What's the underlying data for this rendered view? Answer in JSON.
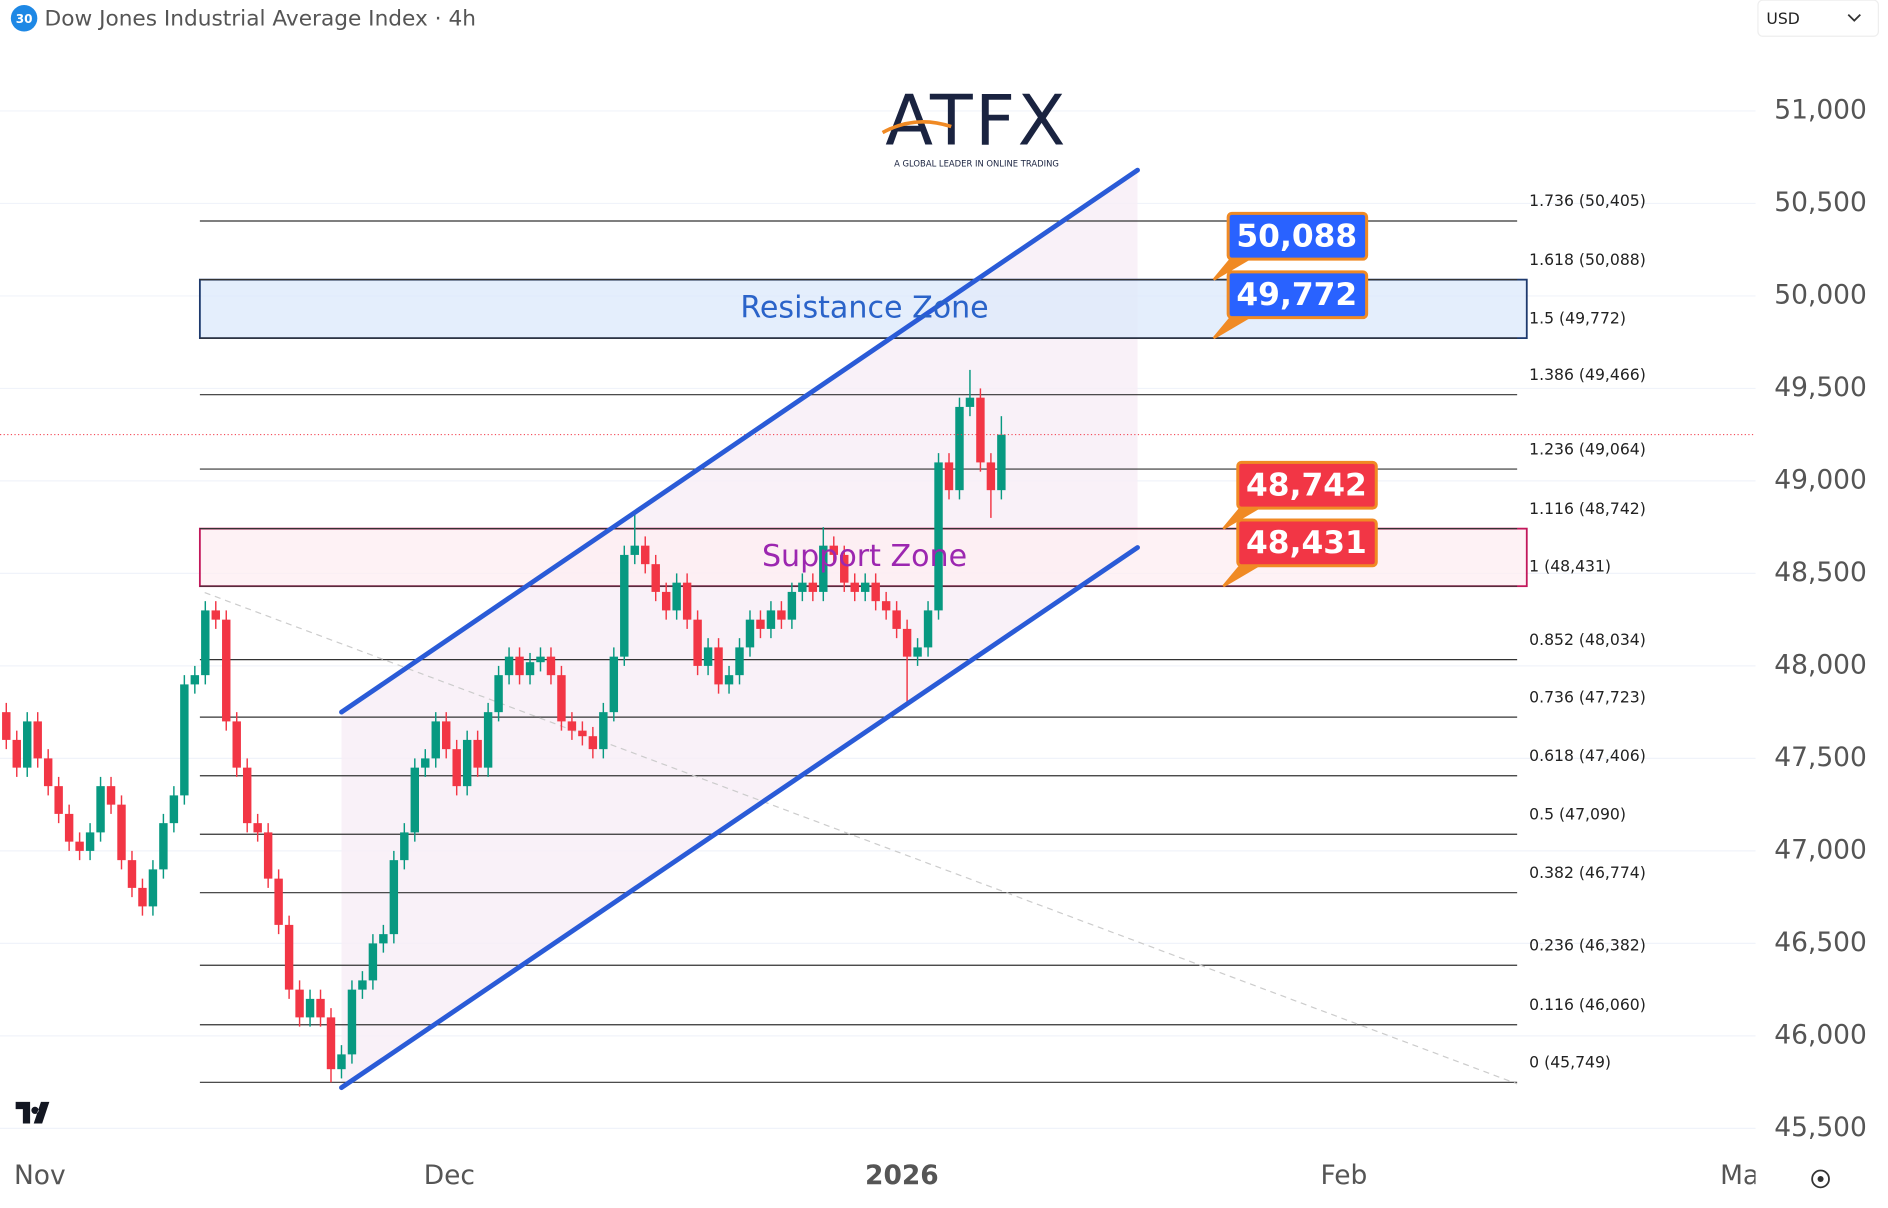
{
  "header": {
    "title": "Dow Jones Industrial Average Index · 4h",
    "badge": "30",
    "currency": "USD"
  },
  "logo": {
    "brand": "ATFX",
    "tagline": "A GLOBAL LEADER IN ONLINE TRADING"
  },
  "chart_data": {
    "type": "candlestick",
    "up_color": "#089981",
    "down_color": "#f23645",
    "open": [
      47750,
      47600,
      47450,
      47700,
      47500,
      47350,
      47200,
      47050,
      47000,
      47100,
      47350,
      47250,
      46950,
      46800,
      46700,
      46900,
      47150,
      47300,
      47900,
      47950,
      48300,
      48250,
      47700,
      47450,
      47150,
      47100,
      46850,
      46600,
      46250,
      46100,
      46200,
      46100,
      45820,
      45900,
      46250,
      46300,
      46500,
      46550,
      46950,
      47100,
      47450,
      47500,
      47700,
      47550,
      47350,
      47600,
      47450,
      47750,
      47950,
      48050,
      47950,
      48020,
      48050,
      47950,
      47700,
      47650,
      47620,
      47550,
      47750,
      48050,
      48600,
      48650,
      48550,
      48400,
      48300,
      48450,
      48250,
      48000,
      48100,
      47900,
      47950,
      48100,
      48250,
      48200,
      48300,
      48250,
      48400,
      48450,
      48400,
      48650,
      48600,
      48450,
      48400,
      48450,
      48350,
      48300,
      48200,
      48050,
      48100,
      48300,
      49100,
      48950,
      49400,
      49450,
      49100,
      48950
    ],
    "high": [
      47800,
      47650,
      47750,
      47750,
      47550,
      47400,
      47250,
      47100,
      47150,
      47400,
      47400,
      47300,
      47000,
      46850,
      46950,
      47200,
      47350,
      47950,
      48000,
      48350,
      48350,
      48300,
      47750,
      47500,
      47200,
      47150,
      46900,
      46650,
      46300,
      46250,
      46250,
      46150,
      45950,
      46300,
      46350,
      46550,
      46600,
      47000,
      47150,
      47500,
      47550,
      47750,
      47750,
      47600,
      47650,
      47650,
      47800,
      48000,
      48100,
      48100,
      48070,
      48100,
      48100,
      48000,
      47750,
      47700,
      47670,
      47800,
      48100,
      48650,
      48830,
      48700,
      48600,
      48450,
      48500,
      48500,
      48300,
      48150,
      48150,
      48000,
      48150,
      48300,
      48300,
      48350,
      48350,
      48450,
      48500,
      48500,
      48750,
      48700,
      48650,
      48500,
      48500,
      48500,
      48400,
      48350,
      48250,
      48150,
      48350,
      49150,
      49150,
      49450,
      49600,
      49500,
      49150,
      49350
    ],
    "low": [
      47550,
      47400,
      47400,
      47450,
      47300,
      47150,
      47000,
      46950,
      46950,
      47050,
      47200,
      46900,
      46750,
      46650,
      46650,
      46850,
      47100,
      47250,
      47850,
      47900,
      48200,
      47650,
      47400,
      47100,
      47050,
      46800,
      46550,
      46200,
      46050,
      46050,
      46050,
      45749,
      45770,
      45850,
      46200,
      46250,
      46450,
      46500,
      46900,
      47050,
      47400,
      47450,
      47500,
      47300,
      47300,
      47400,
      47400,
      47700,
      47900,
      47900,
      47900,
      47970,
      47900,
      47650,
      47600,
      47570,
      47500,
      47500,
      47700,
      48000,
      48550,
      48500,
      48350,
      48250,
      48250,
      48200,
      47950,
      47950,
      47850,
      47850,
      47900,
      48050,
      48150,
      48150,
      48200,
      48200,
      48350,
      48350,
      48350,
      48550,
      48400,
      48350,
      48350,
      48300,
      48250,
      48150,
      47800,
      48000,
      48050,
      48250,
      48900,
      48900,
      49350,
      49050,
      48800,
      48900
    ],
    "close": [
      47600,
      47450,
      47700,
      47500,
      47350,
      47200,
      47050,
      47000,
      47100,
      47350,
      47250,
      46950,
      46800,
      46700,
      46900,
      47150,
      47300,
      47900,
      47950,
      48300,
      48250,
      47700,
      47450,
      47150,
      47100,
      46850,
      46600,
      46250,
      46100,
      46200,
      46100,
      45820,
      45900,
      46250,
      46300,
      46500,
      46550,
      46950,
      47100,
      47450,
      47500,
      47700,
      47550,
      47350,
      47600,
      47450,
      47750,
      47950,
      48050,
      47950,
      48020,
      48050,
      47950,
      47700,
      47650,
      47620,
      47550,
      47750,
      48050,
      48600,
      48650,
      48550,
      48400,
      48300,
      48450,
      48250,
      48000,
      48100,
      47900,
      47950,
      48100,
      48250,
      48200,
      48300,
      48250,
      48400,
      48450,
      48400,
      48650,
      48600,
      48450,
      48400,
      48450,
      48350,
      48300,
      48200,
      48050,
      48100,
      48300,
      49100,
      48950,
      49400,
      49450,
      49100,
      48950,
      49250
    ],
    "xlim": [
      -0.6,
      167
    ],
    "xticks": [
      {
        "value": 3.2,
        "label": "Nov"
      },
      {
        "value": 42.3,
        "label": "Dec"
      },
      {
        "value": 85.5,
        "label": "2026"
      },
      {
        "value": 127.7,
        "label": "Feb"
      },
      {
        "value": 166,
        "label": "Mar"
      }
    ],
    "ylim": [
      45500,
      51000
    ],
    "yticks": [
      {
        "value": 45500,
        "label": "45,500"
      },
      {
        "value": 46000,
        "label": "46,000"
      },
      {
        "value": 46500,
        "label": "46,500"
      },
      {
        "value": 47000,
        "label": "47,000"
      },
      {
        "value": 47500,
        "label": "47,500"
      },
      {
        "value": 48000,
        "label": "48,000"
      },
      {
        "value": 48500,
        "label": "48,500"
      },
      {
        "value": 49000,
        "label": "49,000"
      },
      {
        "value": 49500,
        "label": "49,500"
      },
      {
        "value": 50000,
        "label": "50,000"
      },
      {
        "value": 50500,
        "label": "50,500"
      },
      {
        "value": 51000,
        "label": "51,000"
      }
    ],
    "grid": true,
    "fib_levels": [
      {
        "value": 50405,
        "label": "1.736 (50,405)"
      },
      {
        "value": 50088,
        "label": "1.618 (50,088)"
      },
      {
        "value": 49772,
        "label": "1.5 (49,772)"
      },
      {
        "value": 49466,
        "label": "1.386 (49,466)"
      },
      {
        "value": 49064,
        "label": "1.236 (49,064)"
      },
      {
        "value": 48742,
        "label": "1.116 (48,742)"
      },
      {
        "value": 48431,
        "label": "1 (48,431)"
      },
      {
        "value": 48034,
        "label": "0.852 (48,034)"
      },
      {
        "value": 47723,
        "label": "0.736 (47,723)"
      },
      {
        "value": 47406,
        "label": "0.618 (47,406)"
      },
      {
        "value": 47090,
        "label": "0.5 (47,090)"
      },
      {
        "value": 46774,
        "label": "0.382 (46,774)"
      },
      {
        "value": 46382,
        "label": "0.236 (46,382)"
      },
      {
        "value": 46060,
        "label": "0.116 (46,060)"
      },
      {
        "value": 45749,
        "label": "0 (45,749)"
      }
    ],
    "zones": [
      {
        "label": "Resistance Zone",
        "from": 49772,
        "to": 50088,
        "fill": "#dbe8fb",
        "stroke": "#1e3a6e",
        "text_color": "#2a63c9"
      },
      {
        "label": "Support Zone",
        "from": 48431,
        "to": 48742,
        "fill": "#fdeef2",
        "stroke": "#c2185b",
        "text_color": "#9c27b0"
      }
    ],
    "price_tags": [
      {
        "value": 50088,
        "label": "50,088",
        "color": "#2962ff"
      },
      {
        "value": 49772,
        "label": "49,772",
        "color": "#2962ff"
      },
      {
        "value": 48742,
        "label": "48,742",
        "color": "#f23645"
      },
      {
        "value": 48431,
        "label": "48,431",
        "color": "#f23645"
      }
    ],
    "channel": {
      "color": "#2a5bd7",
      "upper": [
        [
          32,
          47750
        ],
        [
          108,
          50680
        ]
      ],
      "lower": [
        [
          32,
          45720
        ],
        [
          108,
          48640
        ]
      ]
    }
  }
}
